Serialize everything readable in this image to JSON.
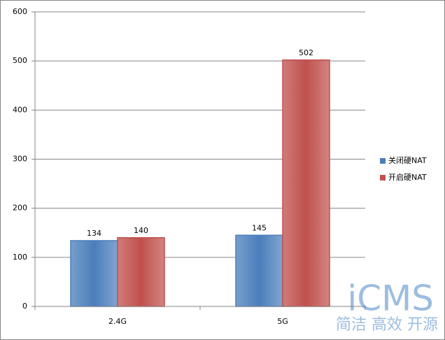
{
  "chart_data": {
    "type": "bar",
    "categories": [
      "2.4G",
      "5G"
    ],
    "series": [
      {
        "name": "关闭硬NAT",
        "color": "#4a7ebb",
        "values": [
          134,
          145
        ]
      },
      {
        "name": "开启硬NAT",
        "color": "#c0504d",
        "values": [
          140,
          502
        ]
      }
    ],
    "ylim": [
      0,
      600
    ],
    "yticks": [
      0,
      100,
      200,
      300,
      400,
      500,
      600
    ],
    "grid": true,
    "legend": "right",
    "watermark": "iCMS",
    "watermark_subtitle": "简洁 高效 开源"
  }
}
